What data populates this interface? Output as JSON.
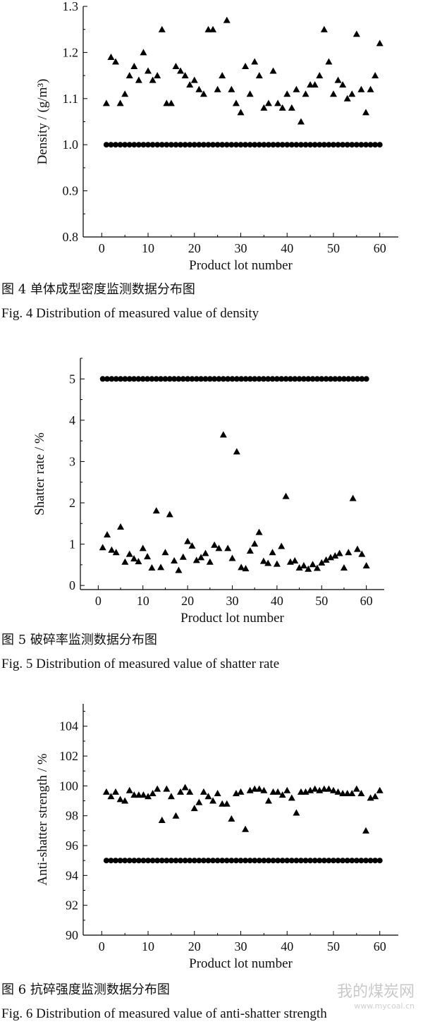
{
  "figures": [
    {
      "caption_zh": "图 4   单体成型密度监测数据分布图",
      "caption_en": "Fig. 4   Distribution of measured value of density"
    },
    {
      "caption_zh": "图 5   破碎率监测数据分布图",
      "caption_en": "Fig. 5   Distribution of measured value of shatter rate"
    },
    {
      "caption_zh": "图 6   抗碎强度监测数据分布图",
      "caption_en": "Fig. 6   Distribution of measured value of anti-shatter strength"
    }
  ],
  "watermark": {
    "text": "我的煤炭网",
    "url": "www.mycoal.cn"
  },
  "chart_data": [
    {
      "type": "scatter",
      "title": "",
      "xlabel": "Product lot number",
      "ylabel": "Density / (g/m³)",
      "xlim": [
        -4,
        64
      ],
      "ylim": [
        0.8,
        1.3
      ],
      "xticks": [
        0,
        10,
        20,
        30,
        40,
        50,
        60
      ],
      "yticks": [
        "0.8",
        "0.9",
        "1.0",
        "1.1",
        "1.2",
        "1.3"
      ],
      "grid": false,
      "series": [
        {
          "marker": "circle",
          "x": [
            1,
            2,
            3,
            4,
            5,
            6,
            7,
            8,
            9,
            10,
            11,
            12,
            13,
            14,
            15,
            16,
            17,
            18,
            19,
            20,
            21,
            22,
            23,
            24,
            25,
            26,
            27,
            28,
            29,
            30,
            31,
            32,
            33,
            34,
            35,
            36,
            37,
            38,
            39,
            40,
            41,
            42,
            43,
            44,
            45,
            46,
            47,
            48,
            49,
            50,
            51,
            52,
            53,
            54,
            55,
            56,
            57,
            58,
            59,
            60
          ],
          "y": [
            1.0,
            1.0,
            1.0,
            1.0,
            1.0,
            1.0,
            1.0,
            1.0,
            1.0,
            1.0,
            1.0,
            1.0,
            1.0,
            1.0,
            1.0,
            1.0,
            1.0,
            1.0,
            1.0,
            1.0,
            1.0,
            1.0,
            1.0,
            1.0,
            1.0,
            1.0,
            1.0,
            1.0,
            1.0,
            1.0,
            1.0,
            1.0,
            1.0,
            1.0,
            1.0,
            1.0,
            1.0,
            1.0,
            1.0,
            1.0,
            1.0,
            1.0,
            1.0,
            1.0,
            1.0,
            1.0,
            1.0,
            1.0,
            1.0,
            1.0,
            1.0,
            1.0,
            1.0,
            1.0,
            1.0,
            1.0,
            1.0,
            1.0,
            1.0,
            1.0
          ]
        },
        {
          "marker": "triangle",
          "x": [
            1,
            2,
            3,
            4,
            5,
            6,
            7,
            8,
            9,
            10,
            11,
            12,
            13,
            14,
            15,
            16,
            17,
            18,
            19,
            20,
            21,
            22,
            23,
            24,
            25,
            26,
            27,
            28,
            29,
            30,
            31,
            32,
            33,
            34,
            35,
            36,
            37,
            38,
            39,
            40,
            41,
            42,
            43,
            44,
            45,
            46,
            47,
            48,
            49,
            50,
            51,
            52,
            53,
            54,
            55,
            56,
            57,
            58,
            59,
            60
          ],
          "y": [
            1.09,
            1.19,
            1.18,
            1.09,
            1.11,
            1.15,
            1.17,
            1.14,
            1.2,
            1.16,
            1.14,
            1.15,
            1.25,
            1.09,
            1.09,
            1.17,
            1.16,
            1.15,
            1.13,
            1.14,
            1.12,
            1.11,
            1.25,
            1.25,
            1.12,
            1.15,
            1.27,
            1.12,
            1.09,
            1.07,
            1.17,
            1.11,
            1.18,
            1.15,
            1.08,
            1.09,
            1.16,
            1.09,
            1.08,
            1.11,
            1.08,
            1.12,
            1.05,
            1.11,
            1.13,
            1.13,
            1.15,
            1.25,
            1.18,
            1.11,
            1.14,
            1.13,
            1.1,
            1.11,
            1.24,
            1.12,
            1.07,
            1.12,
            1.15,
            1.22
          ]
        }
      ]
    },
    {
      "type": "scatter",
      "title": "",
      "xlabel": "Product lot number",
      "ylabel": "Shatter rate / %",
      "xlim": [
        -4,
        64
      ],
      "ylim": [
        -0.1,
        5.5
      ],
      "xticks": [
        0,
        10,
        20,
        30,
        40,
        50,
        60
      ],
      "yticks": [
        "0",
        "1",
        "2",
        "3",
        "4",
        "5"
      ],
      "grid": false,
      "series": [
        {
          "marker": "circle",
          "x": [
            1,
            2,
            3,
            4,
            5,
            6,
            7,
            8,
            9,
            10,
            11,
            12,
            13,
            14,
            15,
            16,
            17,
            18,
            19,
            20,
            21,
            22,
            23,
            24,
            25,
            26,
            27,
            28,
            29,
            30,
            31,
            32,
            33,
            34,
            35,
            36,
            37,
            38,
            39,
            40,
            41,
            42,
            43,
            44,
            45,
            46,
            47,
            48,
            49,
            50,
            51,
            52,
            53,
            54,
            55,
            56,
            57,
            58,
            59,
            60
          ],
          "y": [
            5,
            5,
            5,
            5,
            5,
            5,
            5,
            5,
            5,
            5,
            5,
            5,
            5,
            5,
            5,
            5,
            5,
            5,
            5,
            5,
            5,
            5,
            5,
            5,
            5,
            5,
            5,
            5,
            5,
            5,
            5,
            5,
            5,
            5,
            5,
            5,
            5,
            5,
            5,
            5,
            5,
            5,
            5,
            5,
            5,
            5,
            5,
            5,
            5,
            5,
            5,
            5,
            5,
            5,
            5,
            5,
            5,
            5,
            5,
            5
          ]
        },
        {
          "marker": "triangle",
          "x": [
            1,
            2,
            3,
            4,
            5,
            6,
            7,
            8,
            9,
            10,
            11,
            12,
            13,
            14,
            15,
            16,
            17,
            18,
            19,
            20,
            21,
            22,
            23,
            24,
            25,
            26,
            27,
            28,
            29,
            30,
            31,
            32,
            33,
            34,
            35,
            36,
            37,
            38,
            39,
            40,
            41,
            42,
            43,
            44,
            45,
            46,
            47,
            48,
            49,
            50,
            51,
            52,
            53,
            54,
            55,
            56,
            57,
            58,
            59,
            60
          ],
          "y": [
            0.92,
            1.23,
            0.86,
            0.8,
            1.42,
            0.57,
            0.76,
            0.65,
            0.58,
            0.9,
            0.7,
            0.43,
            1.81,
            0.44,
            0.8,
            1.72,
            0.6,
            0.37,
            0.69,
            1.07,
            0.96,
            0.61,
            0.68,
            0.78,
            0.57,
            0.98,
            0.9,
            3.65,
            0.9,
            0.66,
            3.24,
            0.44,
            0.41,
            0.84,
            1.01,
            1.29,
            0.59,
            0.54,
            0.8,
            0.52,
            0.95,
            2.16,
            0.57,
            0.6,
            0.43,
            0.48,
            0.4,
            0.51,
            0.42,
            0.55,
            0.62,
            0.68,
            0.72,
            0.78,
            0.43,
            0.8,
            2.11,
            0.88,
            0.76,
            0.48
          ]
        }
      ]
    },
    {
      "type": "scatter",
      "title": "",
      "xlabel": "Product lot number",
      "ylabel": "Anti-shatter strength / %",
      "xlim": [
        -4,
        64
      ],
      "ylim": [
        90,
        105.5
      ],
      "xticks": [
        0,
        10,
        20,
        30,
        40,
        50,
        60
      ],
      "yticks": [
        "90",
        "92",
        "94",
        "96",
        "98",
        "100",
        "102",
        "104"
      ],
      "grid": false,
      "series": [
        {
          "marker": "circle",
          "x": [
            1,
            2,
            3,
            4,
            5,
            6,
            7,
            8,
            9,
            10,
            11,
            12,
            13,
            14,
            15,
            16,
            17,
            18,
            19,
            20,
            21,
            22,
            23,
            24,
            25,
            26,
            27,
            28,
            29,
            30,
            31,
            32,
            33,
            34,
            35,
            36,
            37,
            38,
            39,
            40,
            41,
            42,
            43,
            44,
            45,
            46,
            47,
            48,
            49,
            50,
            51,
            52,
            53,
            54,
            55,
            56,
            57,
            58,
            59,
            60
          ],
          "y": [
            95,
            95,
            95,
            95,
            95,
            95,
            95,
            95,
            95,
            95,
            95,
            95,
            95,
            95,
            95,
            95,
            95,
            95,
            95,
            95,
            95,
            95,
            95,
            95,
            95,
            95,
            95,
            95,
            95,
            95,
            95,
            95,
            95,
            95,
            95,
            95,
            95,
            95,
            95,
            95,
            95,
            95,
            95,
            95,
            95,
            95,
            95,
            95,
            95,
            95,
            95,
            95,
            95,
            95,
            95,
            95,
            95,
            95,
            95,
            95
          ]
        },
        {
          "marker": "triangle",
          "x": [
            1,
            2,
            3,
            4,
            5,
            6,
            7,
            8,
            9,
            10,
            11,
            12,
            13,
            14,
            15,
            16,
            17,
            18,
            19,
            20,
            21,
            22,
            23,
            24,
            25,
            26,
            27,
            28,
            29,
            30,
            31,
            32,
            33,
            34,
            35,
            36,
            37,
            38,
            39,
            40,
            41,
            42,
            43,
            44,
            45,
            46,
            47,
            48,
            49,
            50,
            51,
            52,
            53,
            54,
            55,
            56,
            57,
            58,
            59,
            60
          ],
          "y": [
            99.6,
            99.3,
            99.6,
            99.1,
            99.0,
            99.7,
            99.4,
            99.4,
            99.4,
            99.3,
            99.5,
            99.8,
            97.7,
            99.8,
            99.3,
            98.0,
            99.6,
            99.9,
            99.6,
            98.5,
            98.9,
            99.6,
            99.3,
            99.0,
            99.5,
            98.8,
            98.8,
            97.8,
            99.5,
            99.6,
            97.1,
            99.7,
            99.8,
            99.8,
            99.7,
            99.0,
            99.6,
            99.6,
            99.4,
            99.7,
            99.2,
            98.2,
            99.6,
            99.6,
            99.7,
            99.8,
            99.7,
            99.8,
            99.8,
            99.7,
            99.6,
            99.5,
            99.5,
            99.5,
            99.8,
            99.5,
            97.0,
            99.2,
            99.3,
            99.7
          ]
        }
      ]
    }
  ]
}
